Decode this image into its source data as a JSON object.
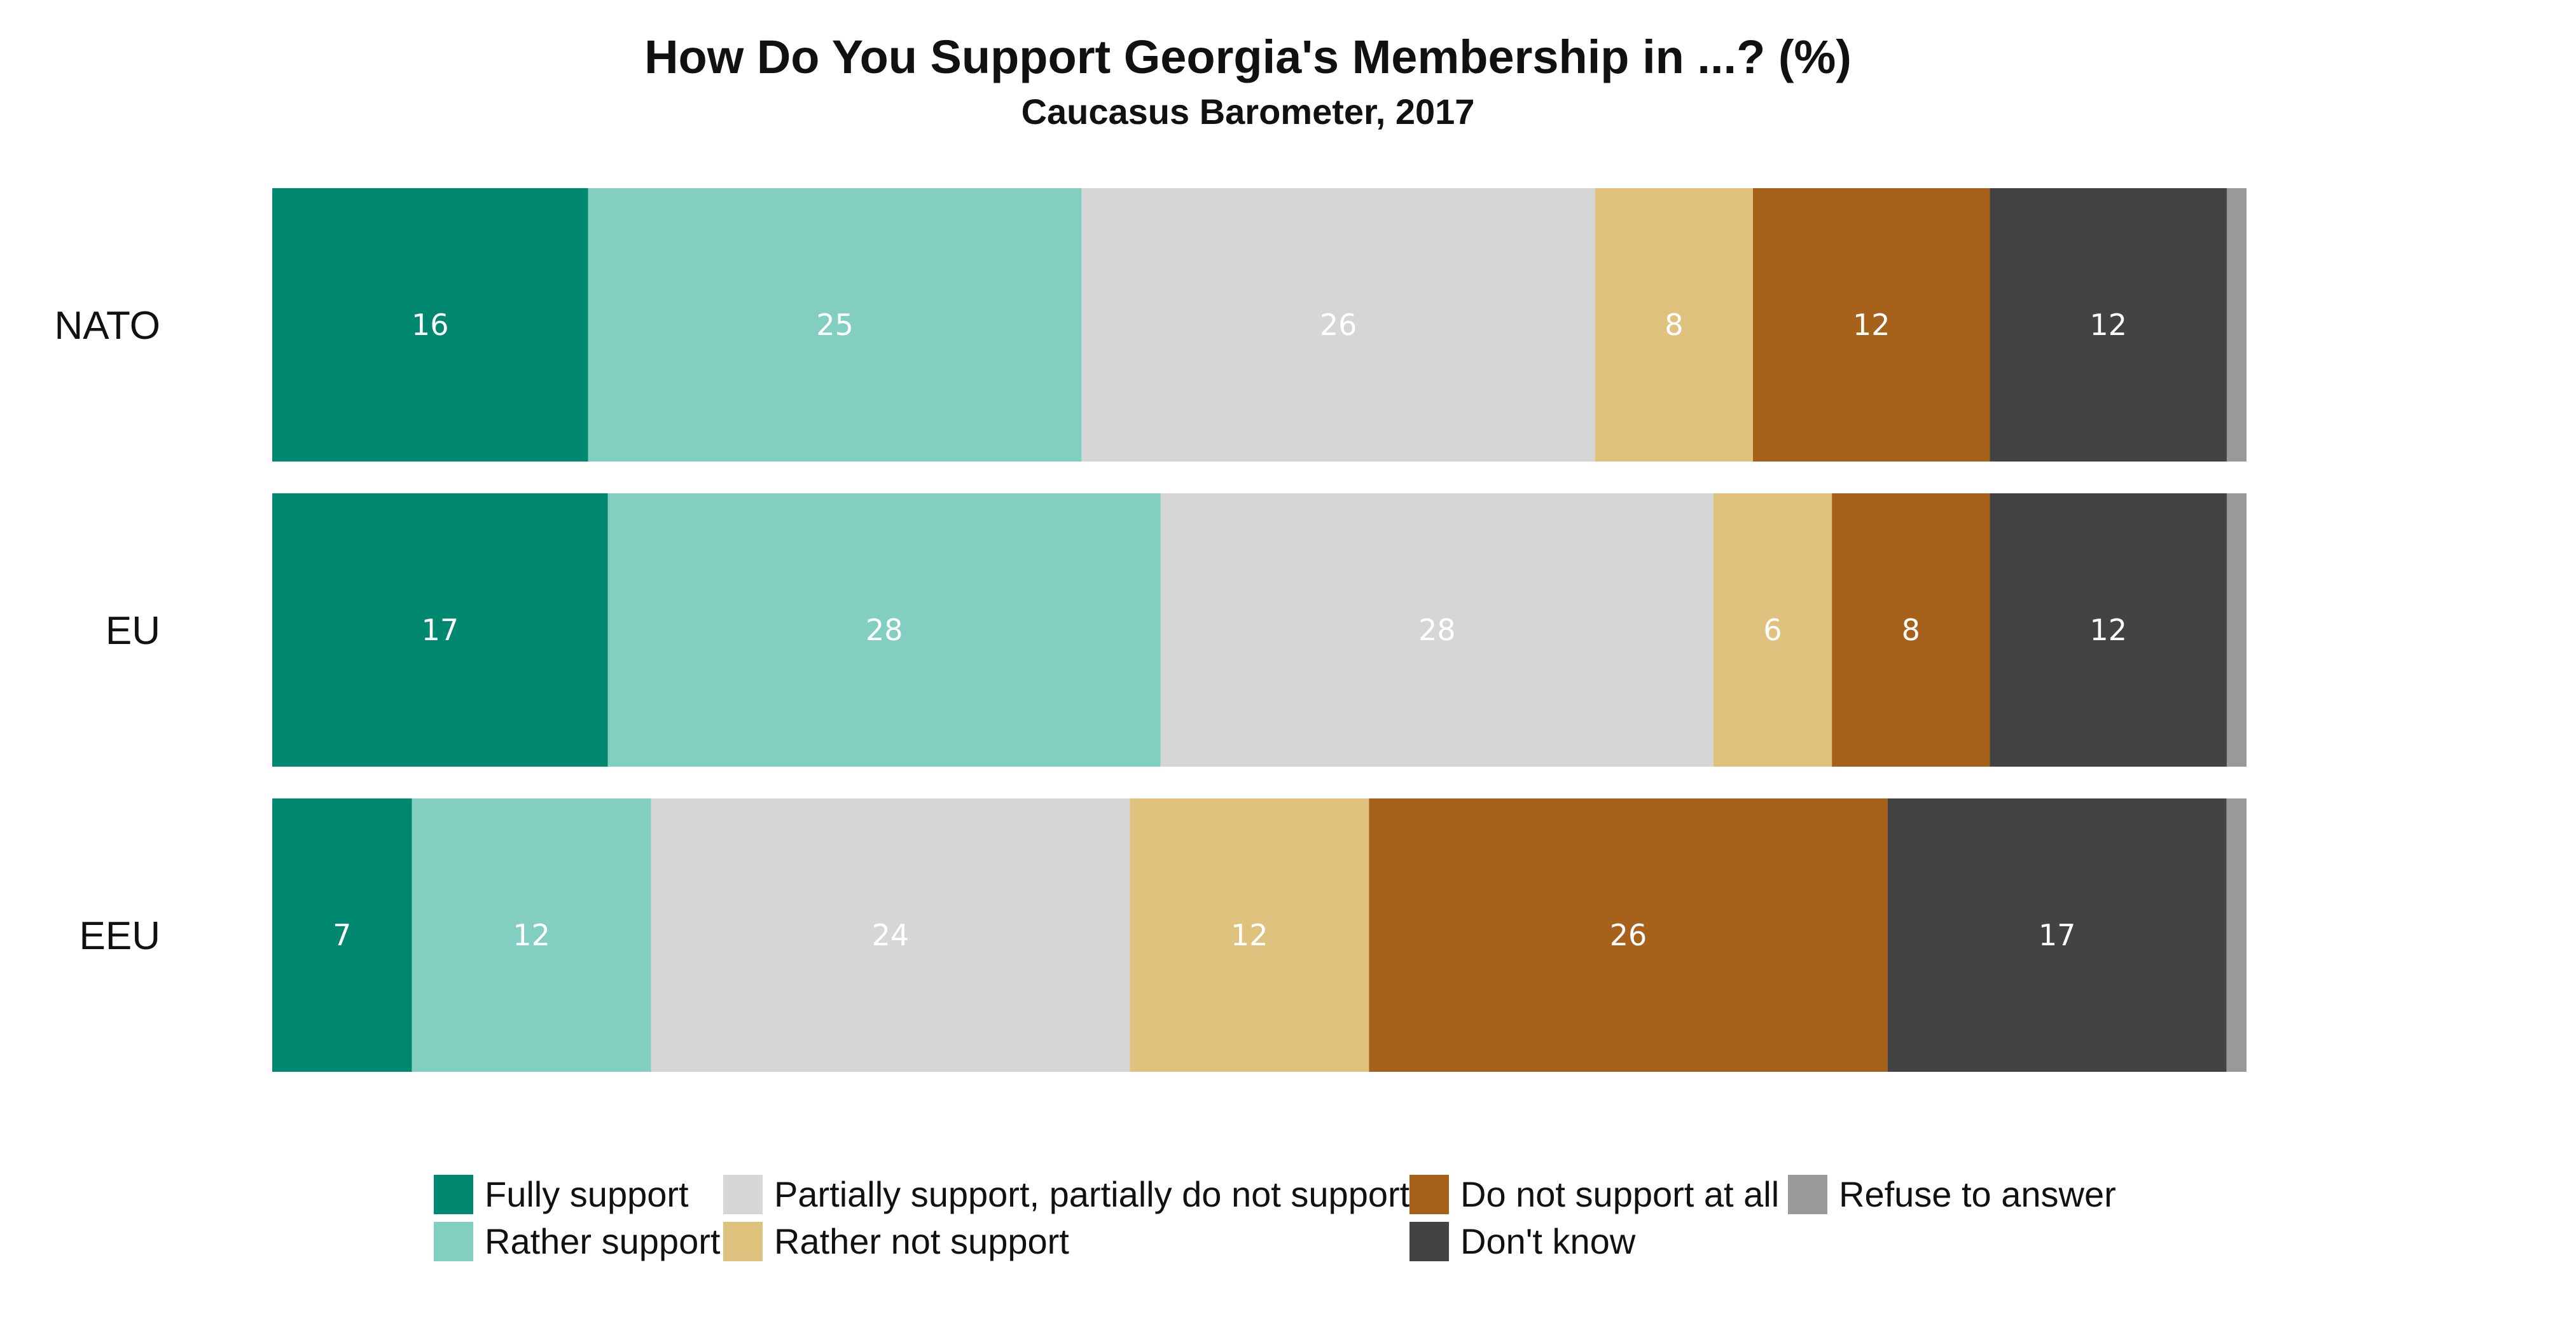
{
  "chart_data": {
    "type": "bar",
    "orientation": "horizontal",
    "stacked": true,
    "title": "How Do You Support Georgia's Membership in ...? (%)",
    "subtitle": "Caucasus Barometer, 2017",
    "xlabel": "",
    "ylabel": "",
    "xlim": [
      0,
      100
    ],
    "grid": false,
    "legend_position": "bottom",
    "categories": [
      "NATO",
      "EU",
      "EEU"
    ],
    "series": [
      {
        "name": "Fully support",
        "color": "#00876f",
        "values": [
          16,
          17,
          7
        ]
      },
      {
        "name": "Rather support",
        "color": "#82cec1",
        "values": [
          25,
          28,
          12
        ]
      },
      {
        "name": "Partially support, partially do not support",
        "color": "#d6d6d6",
        "values": [
          26,
          28,
          24
        ]
      },
      {
        "name": "Rather not support",
        "color": "#dfc27d",
        "values": [
          8,
          6,
          12
        ]
      },
      {
        "name": "Do not support at all",
        "color": "#a6611a",
        "values": [
          12,
          8,
          26
        ]
      },
      {
        "name": "Don't know",
        "color": "#434343",
        "values": [
          12,
          12,
          17
        ]
      },
      {
        "name": "Refuse to answer",
        "color": "#999999",
        "values": [
          1,
          1,
          1
        ]
      }
    ],
    "data_labels": [
      [
        "16",
        "25",
        "26",
        "8",
        "12",
        "12",
        ""
      ],
      [
        "17",
        "28",
        "28",
        "6",
        "8",
        "12",
        ""
      ],
      [
        "7",
        "12",
        "24",
        "12",
        "26",
        "17",
        ""
      ]
    ]
  }
}
